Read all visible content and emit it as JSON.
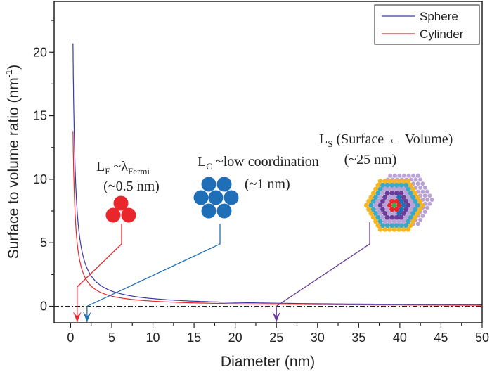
{
  "chart_data": {
    "type": "line",
    "title": "",
    "xlabel": "Diameter (nm)",
    "ylabel": "Surface to volume ratio (nm",
    "ylabel_sup": "-1",
    "ylabel_close": ")",
    "xlim": [
      -2,
      50
    ],
    "ylim": [
      -1.3,
      24
    ],
    "xticks": [
      0,
      5,
      10,
      15,
      20,
      25,
      30,
      35,
      40,
      45,
      50
    ],
    "yticks": [
      0,
      5,
      10,
      15,
      20
    ],
    "grid": false,
    "legend_placement": "top-right",
    "series": [
      {
        "name": "Sphere",
        "color": "#3a3aa8",
        "formula": "6/d",
        "x_range": [
          0.29,
          50
        ]
      },
      {
        "name": "Cylinder",
        "color": "#e8262b",
        "formula": "4/d",
        "x_range": [
          0.29,
          50
        ]
      }
    ],
    "reference_line": {
      "y": 0,
      "style": "dash-dot"
    },
    "annotations": [
      {
        "main": "L",
        "sub": "F",
        "rest": " ~λ",
        "rest_sub": "Fermi",
        "line2": "(~0.5 nm)",
        "arrow_x": 0.8,
        "color": "#e8262b"
      },
      {
        "main": "L",
        "sub": "C",
        "rest": " ~low coordination",
        "rest_sub": "",
        "line2": "(~1 nm)",
        "arrow_x": 2,
        "color": "#1f6fb8"
      },
      {
        "main": "L",
        "sub": "S",
        "rest": " (Surface ← Volume)",
        "rest_sub": "",
        "line2": "(~25 nm)",
        "arrow_x": 25,
        "color": "#6a3d9a"
      }
    ]
  }
}
